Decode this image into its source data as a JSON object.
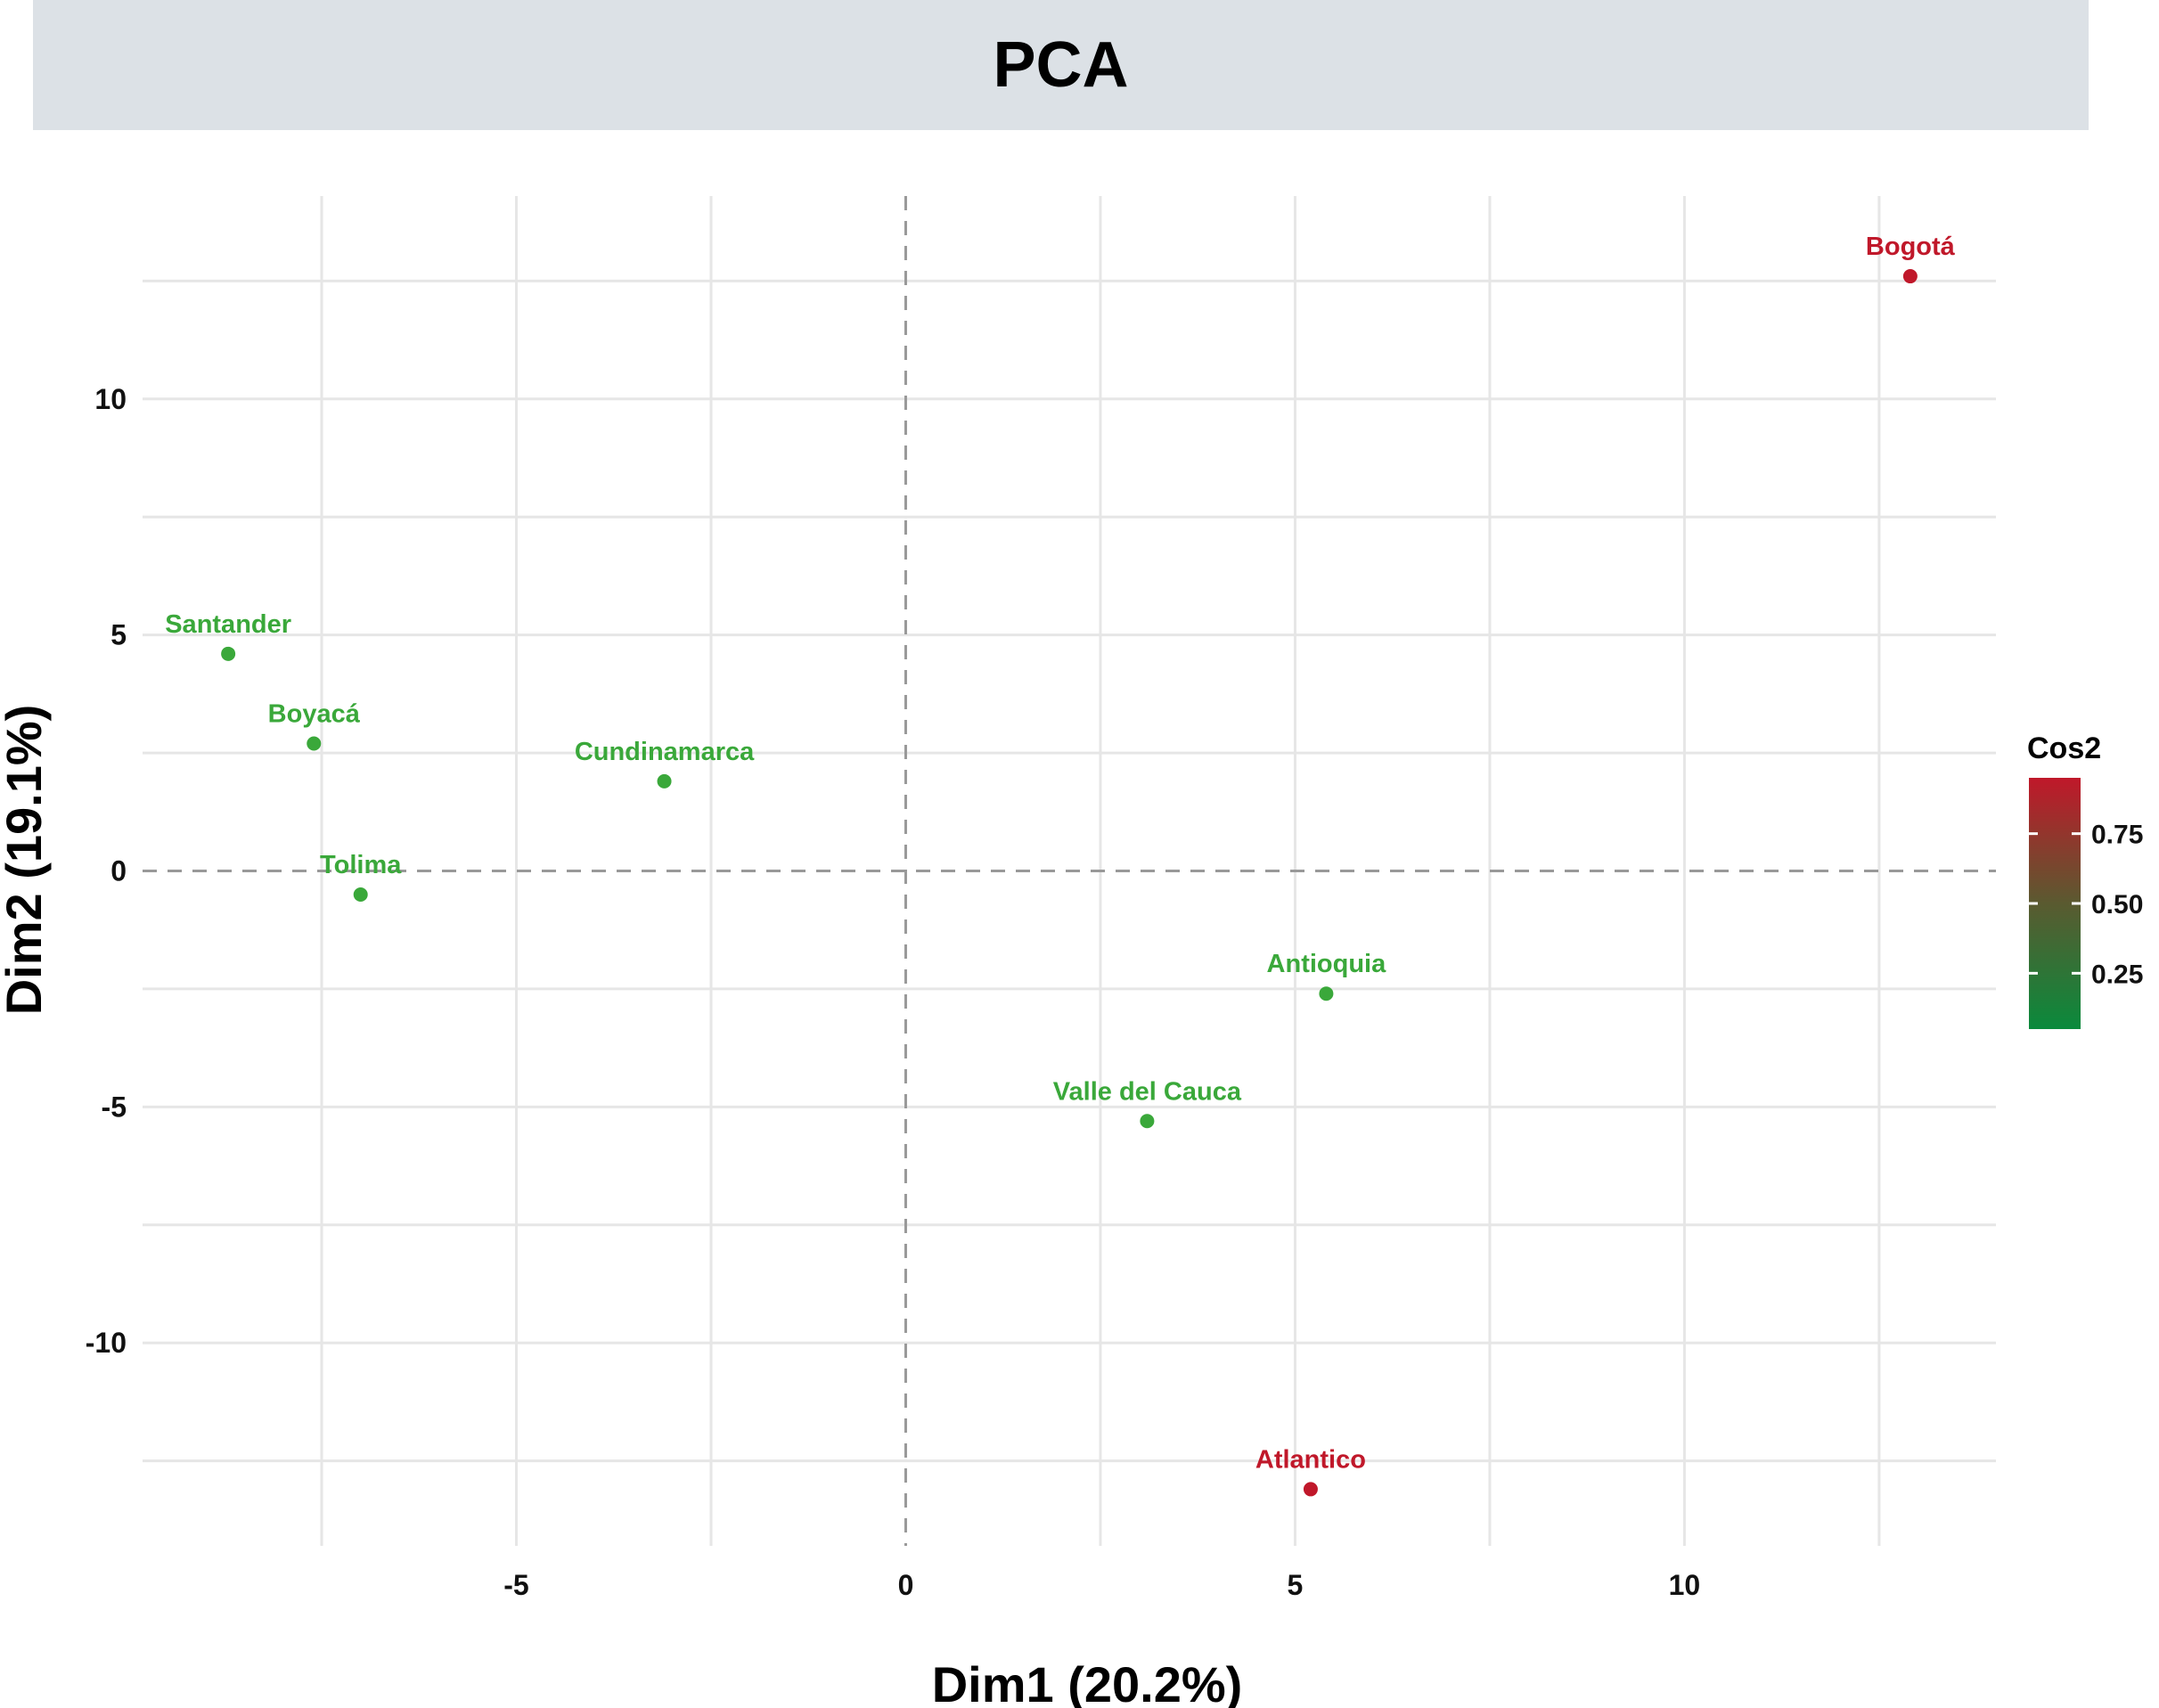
{
  "chart_data": {
    "type": "scatter",
    "title": "PCA",
    "xlabel": "Dim1 (20.2%)",
    "ylabel": "Dim2 (19.1%)",
    "xlim": [
      -9.8,
      14.0
    ],
    "ylim": [
      -14.3,
      14.3
    ],
    "x_ticks": [
      -5,
      0,
      5,
      10
    ],
    "y_ticks": [
      -10,
      -5,
      0,
      5,
      10
    ],
    "grid": true,
    "reference_lines": {
      "x": 0,
      "y": 0,
      "style": "dashed"
    },
    "points": [
      {
        "label": "Bogotá",
        "x": 12.9,
        "y": 12.6,
        "cos2": 0.92
      },
      {
        "label": "Santander",
        "x": -8.7,
        "y": 4.6,
        "cos2": 0.2
      },
      {
        "label": "Boyacá",
        "x": -7.6,
        "y": 2.7,
        "cos2": 0.2
      },
      {
        "label": "Cundinamarca",
        "x": -3.1,
        "y": 1.9,
        "cos2": 0.2
      },
      {
        "label": "Tolima",
        "x": -7.0,
        "y": -0.5,
        "cos2": 0.2
      },
      {
        "label": "Antioquia",
        "x": 5.4,
        "y": -2.6,
        "cos2": 0.2
      },
      {
        "label": "Valle del Cauca",
        "x": 3.1,
        "y": -5.3,
        "cos2": 0.2
      },
      {
        "label": "Atlantico",
        "x": 5.2,
        "y": -13.1,
        "cos2": 0.92
      }
    ],
    "legend": {
      "title": "Cos2",
      "placement": "right",
      "ticks": [
        0.25,
        0.5,
        0.75
      ],
      "tick_labels": [
        "0.25",
        "0.50",
        "0.75"
      ],
      "range": [
        0.05,
        0.95
      ],
      "low_color": "#0a8a3c",
      "high_color": "#c0182a"
    },
    "colors": {
      "low_cos2": "#3aa83a",
      "high_cos2": "#c0182a"
    }
  }
}
